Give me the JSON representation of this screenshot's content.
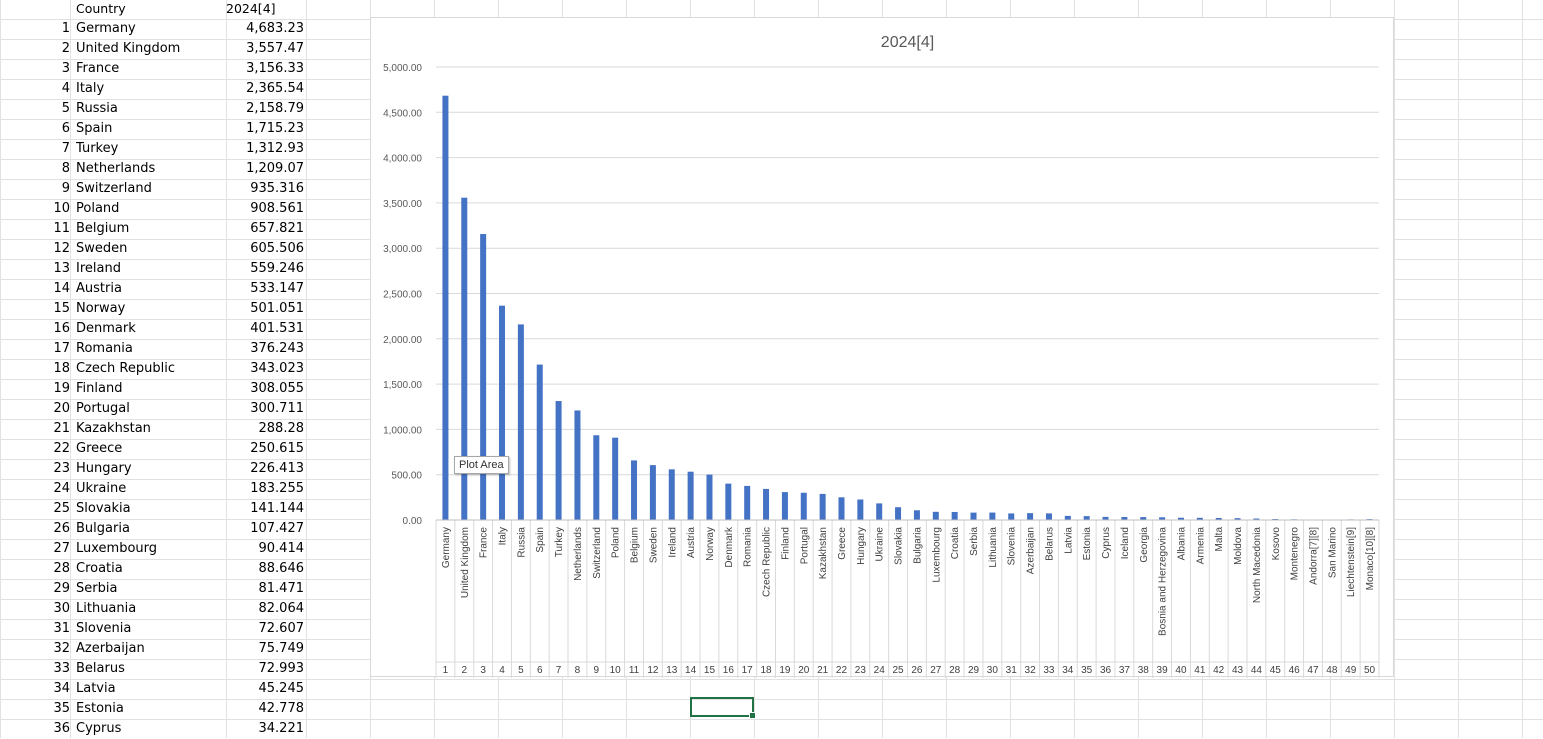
{
  "sheet": {
    "header": {
      "country": "Country",
      "value": "2024[4]"
    },
    "rows": [
      {
        "idx": "1",
        "country": "Germany",
        "value": "4,683.23"
      },
      {
        "idx": "2",
        "country": "United Kingdom",
        "value": "3,557.47"
      },
      {
        "idx": "3",
        "country": "France",
        "value": "3,156.33"
      },
      {
        "idx": "4",
        "country": "Italy",
        "value": "2,365.54"
      },
      {
        "idx": "5",
        "country": "Russia",
        "value": "2,158.79"
      },
      {
        "idx": "6",
        "country": "Spain",
        "value": "1,715.23"
      },
      {
        "idx": "7",
        "country": "Turkey",
        "value": "1,312.93"
      },
      {
        "idx": "8",
        "country": "Netherlands",
        "value": "1,209.07"
      },
      {
        "idx": "9",
        "country": "Switzerland",
        "value": "935.316"
      },
      {
        "idx": "10",
        "country": "Poland",
        "value": "908.561"
      },
      {
        "idx": "11",
        "country": "Belgium",
        "value": "657.821"
      },
      {
        "idx": "12",
        "country": "Sweden",
        "value": "605.506"
      },
      {
        "idx": "13",
        "country": "Ireland",
        "value": "559.246"
      },
      {
        "idx": "14",
        "country": "Austria",
        "value": "533.147"
      },
      {
        "idx": "15",
        "country": "Norway",
        "value": "501.051"
      },
      {
        "idx": "16",
        "country": "Denmark",
        "value": "401.531"
      },
      {
        "idx": "17",
        "country": "Romania",
        "value": "376.243"
      },
      {
        "idx": "18",
        "country": "Czech Republic",
        "value": "343.023"
      },
      {
        "idx": "19",
        "country": "Finland",
        "value": "308.055"
      },
      {
        "idx": "20",
        "country": "Portugal",
        "value": "300.711"
      },
      {
        "idx": "21",
        "country": "Kazakhstan",
        "value": "288.28"
      },
      {
        "idx": "22",
        "country": "Greece",
        "value": "250.615"
      },
      {
        "idx": "23",
        "country": "Hungary",
        "value": "226.413"
      },
      {
        "idx": "24",
        "country": "Ukraine",
        "value": "183.255"
      },
      {
        "idx": "25",
        "country": "Slovakia",
        "value": "141.144"
      },
      {
        "idx": "26",
        "country": "Bulgaria",
        "value": "107.427"
      },
      {
        "idx": "27",
        "country": "Luxembourg",
        "value": "90.414"
      },
      {
        "idx": "28",
        "country": "Croatia",
        "value": "88.646"
      },
      {
        "idx": "29",
        "country": "Serbia",
        "value": "81.471"
      },
      {
        "idx": "30",
        "country": "Lithuania",
        "value": "82.064"
      },
      {
        "idx": "31",
        "country": "Slovenia",
        "value": "72.607"
      },
      {
        "idx": "32",
        "country": "Azerbaijan",
        "value": "75.749"
      },
      {
        "idx": "33",
        "country": "Belarus",
        "value": "72.993"
      },
      {
        "idx": "34",
        "country": "Latvia",
        "value": "45.245"
      },
      {
        "idx": "35",
        "country": "Estonia",
        "value": "42.778"
      },
      {
        "idx": "36",
        "country": "Cyprus",
        "value": "34.221"
      }
    ]
  },
  "tooltip": "Plot Area",
  "colors": {
    "bar": "#4472c4",
    "grid": "#d9d9d9",
    "selection": "#217346"
  },
  "chart_data": {
    "type": "bar",
    "title": "2024[4]",
    "ylim": [
      0,
      5000
    ],
    "yticks": [
      "0.00",
      "500.00",
      "1,000.00",
      "1,500.00",
      "2,000.00",
      "2,500.00",
      "3,000.00",
      "3,500.00",
      "4,000.00",
      "4,500.00",
      "5,000.00"
    ],
    "ytick_values": [
      0,
      500,
      1000,
      1500,
      2000,
      2500,
      3000,
      3500,
      4000,
      4500,
      5000
    ],
    "grid": true,
    "legend": "none",
    "categories": [
      "Germany",
      "United Kingdom",
      "France",
      "Italy",
      "Russia",
      "Spain",
      "Turkey",
      "Netherlands",
      "Switzerland",
      "Poland",
      "Belgium",
      "Sweden",
      "Ireland",
      "Austria",
      "Norway",
      "Denmark",
      "Romania",
      "Czech Republic",
      "Finland",
      "Portugal",
      "Kazakhstan",
      "Greece",
      "Hungary",
      "Ukraine",
      "Slovakia",
      "Bulgaria",
      "Luxembourg",
      "Croatia",
      "Serbia",
      "Lithuania",
      "Slovenia",
      "Azerbaijan",
      "Belarus",
      "Latvia",
      "Estonia",
      "Cyprus",
      "Iceland",
      "Georgia",
      "Bosnia and Herzegovina",
      "Albania",
      "Armenia",
      "Malta",
      "Moldova",
      "North Macedonia",
      "Kosovo",
      "Montenegro",
      "Andorra[7][8]",
      "San Marino",
      "Liechtenstein[9]",
      "Monaco[10][8]"
    ],
    "indices": [
      "1",
      "2",
      "3",
      "4",
      "5",
      "6",
      "7",
      "8",
      "9",
      "10",
      "11",
      "12",
      "13",
      "14",
      "15",
      "16",
      "17",
      "18",
      "19",
      "20",
      "21",
      "22",
      "23",
      "24",
      "25",
      "26",
      "27",
      "28",
      "29",
      "30",
      "31",
      "32",
      "33",
      "34",
      "35",
      "36",
      "37",
      "38",
      "39",
      "40",
      "41",
      "42",
      "43",
      "44",
      "45",
      "46",
      "47",
      "48",
      "49",
      "50"
    ],
    "values": [
      4683.23,
      3557.47,
      3156.33,
      2365.54,
      2158.79,
      1715.23,
      1312.93,
      1209.07,
      935.316,
      908.561,
      657.821,
      605.506,
      559.246,
      533.147,
      501.051,
      401.531,
      376.243,
      343.023,
      308.055,
      300.711,
      288.28,
      250.615,
      226.413,
      183.255,
      141.144,
      107.427,
      90.414,
      88.646,
      81.471,
      82.064,
      72.607,
      75.749,
      72.993,
      45.245,
      42.778,
      34.221,
      33,
      32,
      30,
      25,
      24,
      22,
      20,
      16,
      11,
      8,
      4,
      2,
      7,
      10
    ]
  }
}
